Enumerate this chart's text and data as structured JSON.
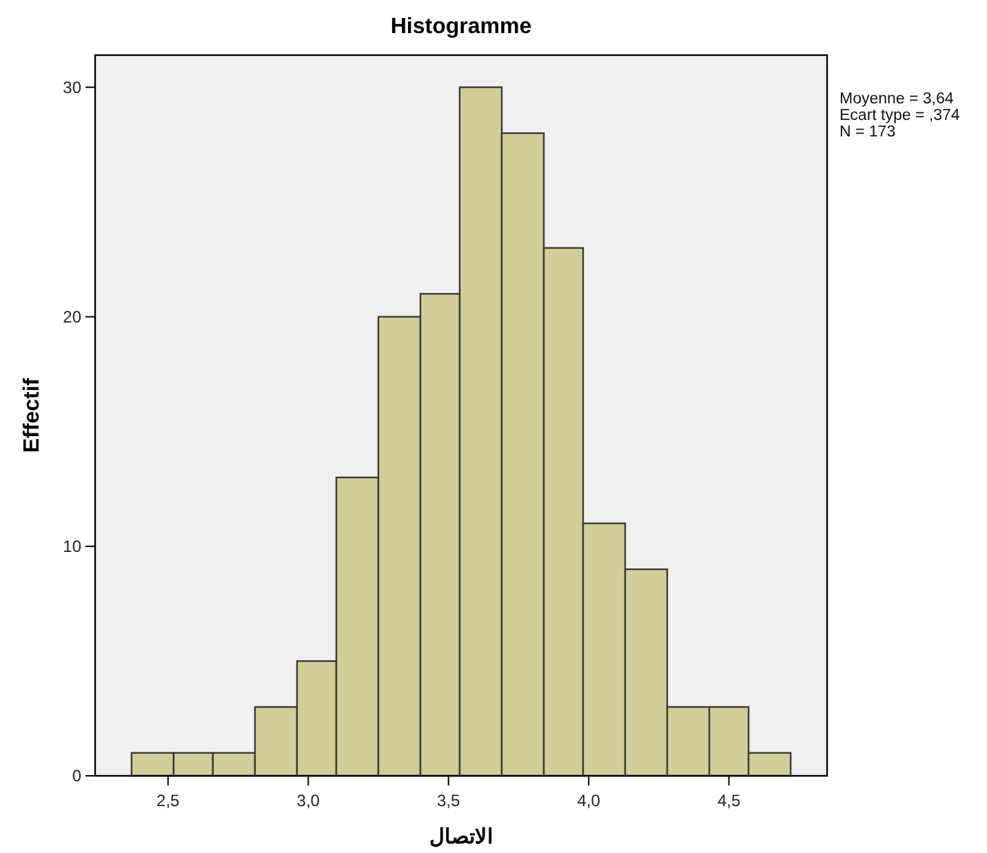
{
  "chart_data": {
    "type": "histogram",
    "title": "Histogramme",
    "xlabel": "الاتصال",
    "ylabel": "Effectif",
    "annotations": [
      "Moyenne = 3,64",
      "Ecart type = ,374",
      "N = 173"
    ],
    "bins": [
      2.37,
      2.52,
      2.66,
      2.81,
      2.96,
      3.1,
      3.25,
      3.4,
      3.54,
      3.69,
      3.84,
      3.98,
      4.13,
      4.28,
      4.43,
      4.57,
      4.72
    ],
    "values": [
      1,
      1,
      1,
      3,
      5,
      13,
      20,
      21,
      30,
      28,
      23,
      11,
      9,
      3,
      3,
      1
    ],
    "color": "#d3ce97",
    "xlim": [
      2.24,
      4.85
    ],
    "ylim": [
      0,
      31.4
    ],
    "xticks": [
      {
        "value": 2.5,
        "label": "2,5"
      },
      {
        "value": 3.0,
        "label": "3,0"
      },
      {
        "value": 3.5,
        "label": "3,5"
      },
      {
        "value": 4.0,
        "label": "4,0"
      },
      {
        "value": 4.5,
        "label": "4,5"
      }
    ],
    "yticks": [
      0,
      10,
      20,
      30
    ]
  }
}
